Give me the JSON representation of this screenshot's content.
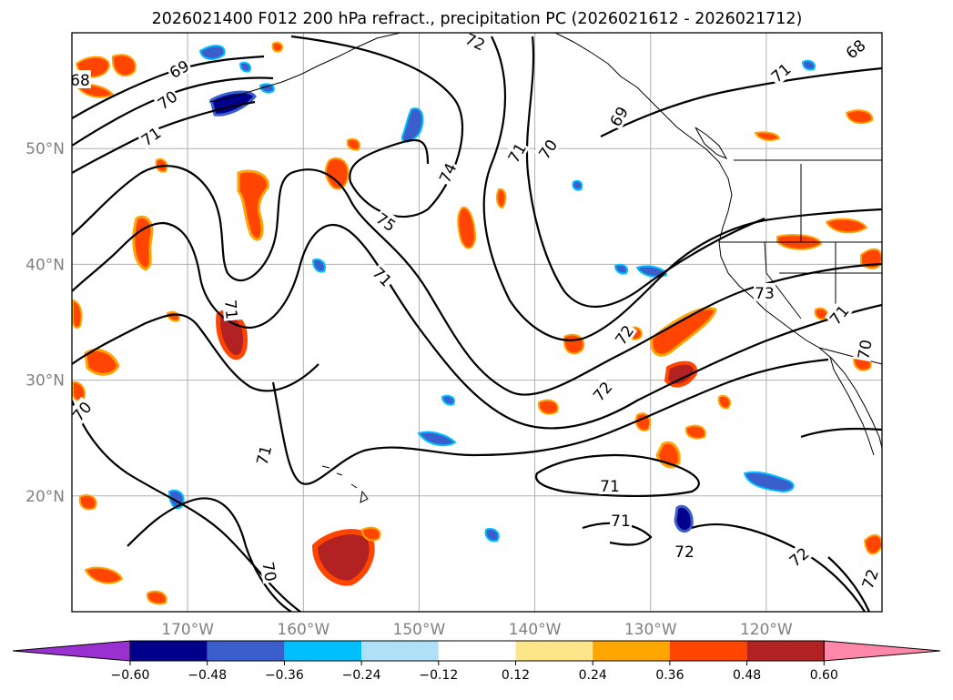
{
  "title": "2026021400 F012 200 hPa refract., precipitation PC (2026021612 - 2026021712)",
  "map": {
    "lon_min": -180,
    "lon_max": -110,
    "lat_min": 10,
    "lat_max": 60,
    "grid": true,
    "lat_labels": [
      "50°N",
      "40°N",
      "30°N",
      "20°N"
    ],
    "lon_labels": [
      "170°W",
      "160°W",
      "150°W",
      "140°W",
      "130°W",
      "120°W"
    ],
    "contour_labels": [
      "69",
      "70",
      "71",
      "72",
      "68",
      "69",
      "71",
      "70",
      "74",
      "75",
      "71",
      "71",
      "71",
      "73",
      "71",
      "70",
      "72",
      "72",
      "70",
      "71",
      "70",
      "71",
      "72",
      "72",
      "72",
      "71",
      "68"
    ]
  },
  "colorbar": {
    "ticks": [
      "−0.60",
      "−0.48",
      "−0.36",
      "−0.24",
      "−0.12",
      "0.12",
      "0.24",
      "0.36",
      "0.48",
      "0.60"
    ],
    "colors": [
      "#9b30d0",
      "#00008b",
      "#3a5fcd",
      "#00bfff",
      "#afe0f8",
      "#ffffff",
      "#ffe58a",
      "#ffa500",
      "#ff4500",
      "#b22222",
      "#ff88aa"
    ],
    "extend": "both"
  }
}
